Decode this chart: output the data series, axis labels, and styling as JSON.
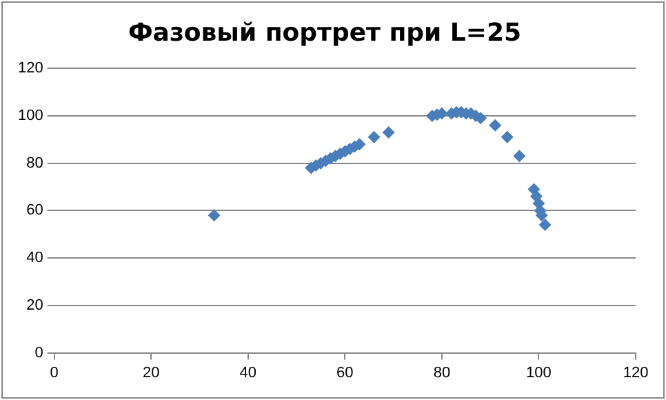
{
  "chart_data": {
    "type": "scatter",
    "title": "Фазовый портрет при L=25",
    "series": [
      {
        "color": "#4a7ebb",
        "x": [
          33,
          53,
          54,
          55,
          56,
          57,
          58,
          59,
          60,
          61,
          62,
          63,
          66,
          69,
          78,
          79,
          80,
          82,
          83,
          84,
          85,
          86,
          87,
          88,
          91,
          93.5,
          96,
          99,
          99.5,
          100,
          100.3,
          100.6,
          101.3
        ],
        "values": [
          58,
          78,
          79,
          80,
          81,
          82,
          83,
          84,
          85,
          86,
          87,
          88,
          91,
          93,
          100,
          100.5,
          101,
          101,
          101.5,
          101.5,
          101,
          101,
          100,
          99,
          96,
          91,
          83,
          69,
          66,
          63,
          60,
          58,
          54
        ]
      }
    ],
    "xlim": [
      0,
      120
    ],
    "xticks": [
      0,
      20,
      40,
      60,
      80,
      100,
      120
    ],
    "ylim": [
      0,
      120
    ],
    "yticks": [
      0,
      20,
      40,
      60,
      80,
      100,
      120
    ],
    "grid": "y",
    "legend": false,
    "marker": "diamond"
  }
}
